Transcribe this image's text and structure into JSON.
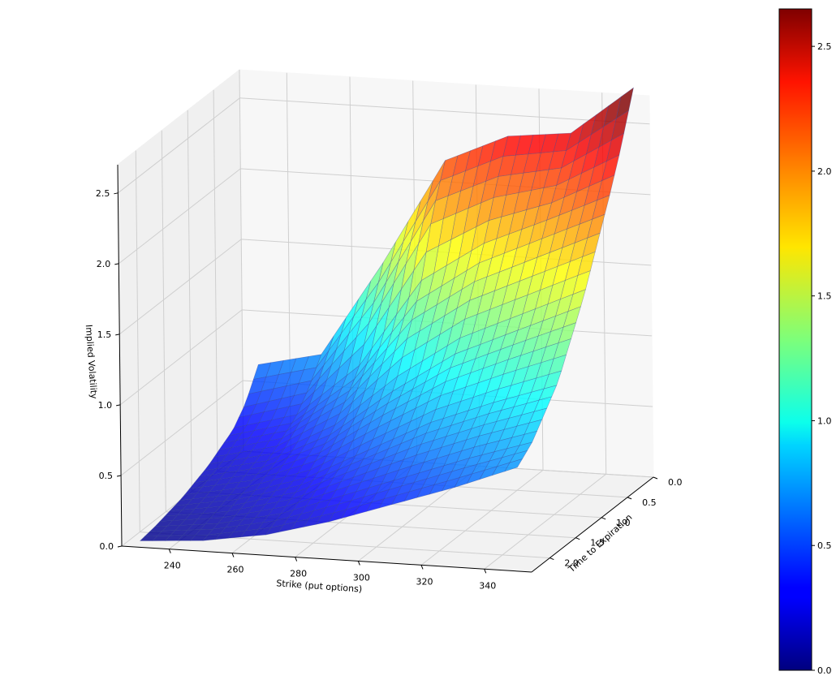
{
  "chart_data": {
    "type": "surface3d",
    "title": "",
    "xlabel": "Strike (put options)",
    "ylabel": "Time to Expiration",
    "zlabel": "Implied Volatility",
    "x_ticks": [
      240,
      260,
      280,
      300,
      320,
      340
    ],
    "y_ticks": [
      "0.0",
      "0.5",
      "1.0",
      "1.5",
      "2.0"
    ],
    "z_ticks": [
      "0.0",
      "0.5",
      "1.0",
      "1.5",
      "2.0",
      "2.5"
    ],
    "xlim": [
      225,
      355
    ],
    "ylim": [
      0,
      2.35
    ],
    "zlim": [
      0,
      2.7
    ],
    "colormap": "jet",
    "colorbar": {
      "ticks": [
        "0.0",
        "0.5",
        "1.0",
        "1.5",
        "2.0",
        "2.5"
      ],
      "range": [
        0,
        2.65
      ]
    },
    "surface": {
      "strikes": [
        230,
        250,
        270,
        290,
        310,
        330,
        350
      ],
      "expirations": [
        0.0,
        0.25,
        0.5,
        1.0,
        1.5,
        2.0,
        2.3
      ],
      "implied_volatility": [
        [
          0.62,
          0.72,
          1.4,
          2.15,
          2.35,
          2.4,
          2.75
        ],
        [
          0.42,
          0.55,
          1.1,
          1.85,
          2.05,
          2.15,
          2.4
        ],
        [
          0.3,
          0.42,
          0.78,
          1.4,
          1.7,
          1.9,
          2.1
        ],
        [
          0.18,
          0.28,
          0.5,
          0.85,
          1.15,
          1.35,
          1.55
        ],
        [
          0.1,
          0.18,
          0.32,
          0.55,
          0.78,
          0.95,
          1.1
        ],
        [
          0.05,
          0.1,
          0.2,
          0.36,
          0.52,
          0.68,
          0.82
        ],
        [
          0.03,
          0.06,
          0.13,
          0.25,
          0.4,
          0.55,
          0.72
        ]
      ]
    }
  }
}
